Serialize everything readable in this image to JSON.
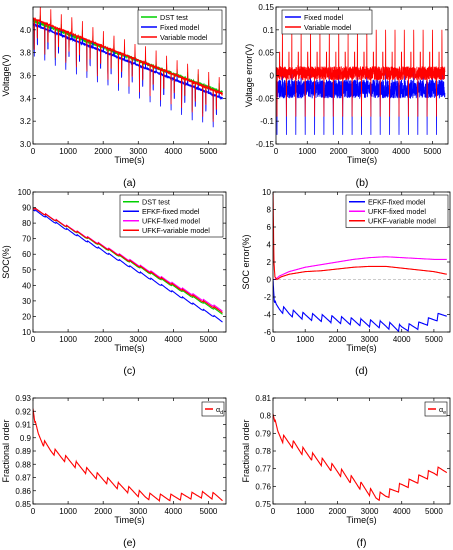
{
  "chart_data": [
    {
      "id": "a",
      "type": "line",
      "panel_label": "(a)",
      "xlabel": "Time(s)",
      "ylabel": "Voltage(V)",
      "xlim": [
        0,
        5500
      ],
      "ylim": [
        3.0,
        4.2
      ],
      "xticks": [
        0,
        1000,
        2000,
        3000,
        4000,
        5000
      ],
      "yticks": [
        3.0,
        3.2,
        3.4,
        3.6,
        3.8,
        4.0
      ],
      "ytick_labels": [
        "3.0",
        "3.2",
        "3.4",
        "3.6",
        "3.8",
        "4.0"
      ],
      "grid": false,
      "legend": "top-right",
      "series": [
        {
          "name": "DST test",
          "color": "#00d000",
          "kind": "dst",
          "start": 4.08,
          "end": 3.45,
          "peak": 0.07,
          "dip": 0.32,
          "noise": 0.03
        },
        {
          "name": "Fixed model",
          "color": "#0000ff",
          "kind": "dst",
          "start": 4.05,
          "end": 3.4,
          "peak": 0.06,
          "dip": 0.36,
          "noise": 0.02
        },
        {
          "name": "Variable model",
          "color": "#ff0000",
          "kind": "dst",
          "start": 4.1,
          "end": 3.44,
          "peak": 0.14,
          "dip": 0.34,
          "noise": 0.02
        }
      ]
    },
    {
      "id": "b",
      "type": "line",
      "panel_label": "(b)",
      "xlabel": "Time(s)",
      "ylabel": "Voltage error(V)",
      "xlim": [
        0,
        5500
      ],
      "ylim": [
        -0.15,
        0.15
      ],
      "xticks": [
        0,
        1000,
        2000,
        3000,
        4000,
        5000
      ],
      "yticks": [
        -0.15,
        -0.1,
        -0.05,
        0,
        0.05,
        0.1,
        0.15
      ],
      "ytick_labels": [
        "-0.15",
        "-0.1",
        "-0.05",
        "0",
        "0.05",
        "0.1",
        "0.15"
      ],
      "grid": false,
      "legend": "top-left",
      "series": [
        {
          "name": "Fixed model",
          "color": "#0000ff",
          "kind": "errband",
          "center": -0.03,
          "peak_up": 0.02,
          "peak_down": -0.13,
          "noise": 0.02
        },
        {
          "name": "Variable model",
          "color": "#ff0000",
          "kind": "errband",
          "center": 0.005,
          "peak_up": 0.12,
          "peak_down": -0.09,
          "noise": 0.015
        }
      ]
    },
    {
      "id": "c",
      "type": "line",
      "panel_label": "(c)",
      "xlabel": "Time(s)",
      "ylabel": "SOC(%)",
      "xlim": [
        0,
        5500
      ],
      "ylim": [
        10,
        100
      ],
      "xticks": [
        0,
        1000,
        2000,
        3000,
        4000,
        5000
      ],
      "yticks": [
        10,
        20,
        30,
        40,
        50,
        60,
        70,
        80,
        90,
        100
      ],
      "ytick_labels": [
        "10",
        "20",
        "30",
        "40",
        "50",
        "60",
        "70",
        "80",
        "90",
        "100"
      ],
      "grid": false,
      "legend": "top-right",
      "series": [
        {
          "name": "DST test",
          "color": "#00d000",
          "kind": "stairs",
          "start": 90,
          "end": 22
        },
        {
          "name": "EFKF-fixed model",
          "color": "#0000ff",
          "kind": "stairs",
          "start": 89,
          "end": 17
        },
        {
          "name": "UFKF-fixed model",
          "color": "#ff00ff",
          "kind": "stairs",
          "start": 90,
          "end": 24
        },
        {
          "name": "UFKF-variable model",
          "color": "#ff0000",
          "kind": "stairs",
          "start": 90,
          "end": 23
        }
      ]
    },
    {
      "id": "d",
      "type": "line",
      "panel_label": "(d)",
      "xlabel": "Time(s)",
      "ylabel": "SOC error(%)",
      "xlim": [
        0,
        5500
      ],
      "ylim": [
        -6,
        10
      ],
      "xticks": [
        0,
        1000,
        2000,
        3000,
        4000,
        5000
      ],
      "yticks": [
        -6,
        -4,
        -2,
        0,
        2,
        4,
        6,
        8,
        10
      ],
      "ytick_labels": [
        "-6",
        "-4",
        "-2",
        "0",
        "2",
        "4",
        "6",
        "8",
        "10"
      ],
      "grid": false,
      "legend": "top-right",
      "reference_line": 0,
      "series": [
        {
          "name": "EFKF-fixed model",
          "color": "#0000ff",
          "x": [
            0,
            40,
            100,
            200,
            500,
            1000,
            1500,
            2000,
            2500,
            3000,
            3500,
            4000,
            4500,
            5000,
            5400
          ],
          "y": [
            0,
            -2.5,
            -3.0,
            -3.3,
            -3.8,
            -4.2,
            -4.4,
            -4.6,
            -4.8,
            -5.0,
            -5.2,
            -5.6,
            -5.3,
            -4.5,
            -3.8
          ],
          "sawtooth": 0.8
        },
        {
          "name": "UFKF-fixed model",
          "color": "#ff00ff",
          "x": [
            0,
            50,
            100,
            200,
            500,
            1000,
            1500,
            2000,
            2500,
            3000,
            3500,
            4000,
            4500,
            5000,
            5400
          ],
          "y": [
            0,
            0.0,
            0.1,
            0.4,
            0.9,
            1.4,
            1.7,
            2.0,
            2.3,
            2.5,
            2.6,
            2.5,
            2.4,
            2.3,
            2.3
          ],
          "sawtooth": 0
        },
        {
          "name": "UFKF-variable model",
          "color": "#ff0000",
          "x": [
            0,
            30,
            60,
            120,
            250,
            500,
            1000,
            1500,
            2000,
            2500,
            3000,
            3500,
            4000,
            4500,
            5000,
            5400
          ],
          "y": [
            10,
            2.0,
            0.3,
            0.0,
            0.3,
            0.6,
            0.9,
            1.0,
            1.2,
            1.4,
            1.5,
            1.5,
            1.3,
            1.1,
            0.9,
            0.6
          ],
          "sawtooth": 0
        }
      ]
    },
    {
      "id": "e",
      "type": "line",
      "panel_label": "(e)",
      "xlabel": "Time(s)",
      "ylabel": "Fractional order",
      "xlim": [
        0,
        5500
      ],
      "ylim": [
        0.85,
        0.93
      ],
      "xticks": [
        0,
        1000,
        2000,
        3000,
        4000,
        5000
      ],
      "yticks": [
        0.85,
        0.86,
        0.87,
        0.88,
        0.89,
        0.9,
        0.91,
        0.92,
        0.93
      ],
      "ytick_labels": [
        "0.85",
        "0.86",
        "0.87",
        "0.88",
        "0.89",
        "0.9",
        "0.91",
        "0.92",
        "0.93"
      ],
      "grid": false,
      "legend": "top-right",
      "series": [
        {
          "name": "α",
          "subscript": "d",
          "color": "#ff0000",
          "x": [
            0,
            50,
            150,
            300,
            500,
            800,
            1200,
            1600,
            2000,
            2400,
            2800,
            3200,
            3600,
            4000,
            4400,
            4800,
            5200,
            5400
          ],
          "y": [
            0.922,
            0.912,
            0.903,
            0.896,
            0.891,
            0.886,
            0.88,
            0.874,
            0.869,
            0.864,
            0.86,
            0.856,
            0.855,
            0.855,
            0.856,
            0.857,
            0.856,
            0.855
          ],
          "sawtooth": 0.005
        }
      ]
    },
    {
      "id": "f",
      "type": "line",
      "panel_label": "(f)",
      "xlabel": "Time(s)",
      "ylabel": "Fractional order",
      "xlim": [
        0,
        5500
      ],
      "ylim": [
        0.75,
        0.81
      ],
      "xticks": [
        0,
        1000,
        2000,
        3000,
        4000,
        5000
      ],
      "yticks": [
        0.75,
        0.76,
        0.77,
        0.78,
        0.79,
        0.8,
        0.81
      ],
      "ytick_labels": [
        "0.75",
        "0.76",
        "0.77",
        "0.78",
        "0.79",
        "0.8",
        "0.81"
      ],
      "grid": false,
      "legend": "top-right",
      "series": [
        {
          "name": "α",
          "subscript": "e",
          "color": "#ff0000",
          "x": [
            0,
            50,
            150,
            300,
            600,
            1000,
            1500,
            2000,
            2500,
            3000,
            3200,
            3500,
            4000,
            4500,
            5000,
            5400
          ],
          "y": [
            0.801,
            0.797,
            0.791,
            0.787,
            0.784,
            0.779,
            0.774,
            0.769,
            0.763,
            0.757,
            0.754,
            0.755,
            0.76,
            0.764,
            0.768,
            0.77
          ],
          "sawtooth": 0.0045
        }
      ]
    }
  ]
}
